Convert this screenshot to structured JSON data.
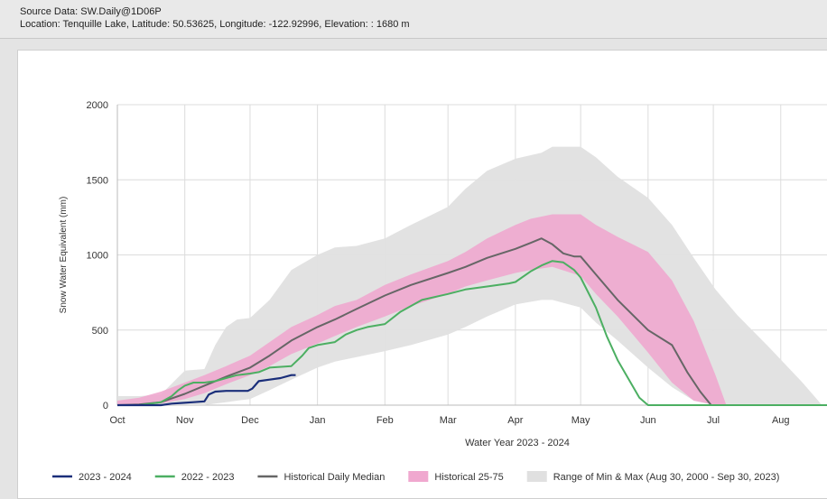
{
  "header": {
    "source": "Source Data: SW.Daily@1D06P",
    "location": "Location: Tenquille Lake, Latitude: 50.53625, Longitude: -122.92996, Elevation: : 1680 m"
  },
  "colors": {
    "current": "#1a2e7a",
    "previous": "#4caf62",
    "median": "#666666",
    "band_25_75": "#f0a8cf",
    "band_minmax": "#e0e0e0",
    "grid": "#dcdcdc"
  },
  "chart_data": {
    "type": "area",
    "title": "",
    "xlabel": "Water Year 2023 - 2024",
    "ylabel": "Snow Water Equivalent (mm)",
    "ylim": [
      0,
      2000
    ],
    "yticks": [
      0,
      500,
      1000,
      1500,
      2000
    ],
    "xlim": [
      0,
      330
    ],
    "month_ticks": [
      {
        "label": "Oct",
        "day": 0
      },
      {
        "label": "Nov",
        "day": 31
      },
      {
        "label": "Dec",
        "day": 61
      },
      {
        "label": "Jan",
        "day": 92
      },
      {
        "label": "Feb",
        "day": 123
      },
      {
        "label": "Mar",
        "day": 152
      },
      {
        "label": "Apr",
        "day": 183
      },
      {
        "label": "May",
        "day": 213
      },
      {
        "label": "Jun",
        "day": 244
      },
      {
        "label": "Jul",
        "day": 274
      },
      {
        "label": "Aug",
        "day": 305
      }
    ],
    "bands": [
      {
        "name": "Range of Min & Max (Aug 30, 2000 - Sep 30, 2023)",
        "x": [
          0,
          10,
          20,
          31,
          40,
          45,
          50,
          55,
          61,
          70,
          80,
          92,
          100,
          110,
          123,
          135,
          152,
          160,
          170,
          183,
          195,
          200,
          213,
          220,
          230,
          244,
          255,
          265,
          275,
          285,
          300,
          315,
          324
        ],
        "low": [
          0,
          0,
          0,
          0,
          0,
          10,
          20,
          30,
          40,
          100,
          170,
          250,
          290,
          320,
          360,
          400,
          470,
          520,
          590,
          670,
          700,
          700,
          650,
          550,
          430,
          250,
          120,
          30,
          0,
          0,
          0,
          0,
          0
        ],
        "high": [
          60,
          60,
          70,
          230,
          240,
          400,
          520,
          570,
          580,
          700,
          900,
          1000,
          1050,
          1060,
          1110,
          1200,
          1320,
          1440,
          1560,
          1640,
          1680,
          1720,
          1720,
          1650,
          1520,
          1380,
          1200,
          980,
          770,
          600,
          380,
          150,
          0
        ]
      },
      {
        "name": "Historical 25-75",
        "x": [
          0,
          10,
          20,
          31,
          40,
          50,
          61,
          70,
          80,
          92,
          100,
          110,
          123,
          135,
          152,
          160,
          170,
          183,
          190,
          200,
          213,
          220,
          230,
          244,
          255,
          265,
          275,
          280
        ],
        "low": [
          0,
          0,
          10,
          40,
          80,
          140,
          200,
          260,
          340,
          410,
          460,
          520,
          590,
          660,
          740,
          790,
          830,
          880,
          900,
          920,
          860,
          740,
          590,
          350,
          150,
          30,
          0,
          0
        ],
        "high": [
          30,
          50,
          90,
          150,
          200,
          260,
          330,
          420,
          520,
          600,
          660,
          700,
          800,
          870,
          960,
          1020,
          1110,
          1200,
          1240,
          1270,
          1270,
          1200,
          1120,
          1020,
          830,
          560,
          200,
          0
        ]
      }
    ],
    "series": [
      {
        "name": "Historical Daily Median",
        "color": "#666666",
        "x": [
          0,
          10,
          20,
          31,
          40,
          50,
          61,
          70,
          80,
          92,
          100,
          110,
          123,
          135,
          152,
          160,
          170,
          183,
          190,
          195,
          200,
          205,
          210,
          213,
          220,
          230,
          244,
          255,
          262,
          268,
          273
        ],
        "y": [
          0,
          5,
          20,
          75,
          130,
          190,
          250,
          330,
          430,
          520,
          570,
          640,
          730,
          800,
          880,
          920,
          980,
          1040,
          1080,
          1110,
          1070,
          1010,
          990,
          990,
          870,
          700,
          500,
          400,
          220,
          90,
          0
        ]
      },
      {
        "name": "2022 - 2023",
        "color": "#4caf62",
        "x": [
          0,
          10,
          20,
          25,
          28,
          31,
          35,
          40,
          45,
          50,
          55,
          61,
          65,
          70,
          80,
          85,
          88,
          92,
          100,
          105,
          110,
          115,
          123,
          130,
          140,
          152,
          160,
          170,
          180,
          183,
          190,
          195,
          200,
          205,
          210,
          213,
          220,
          225,
          230,
          236,
          240,
          244,
          250,
          270,
          300,
          330
        ],
        "y": [
          0,
          0,
          20,
          60,
          100,
          130,
          150,
          150,
          160,
          180,
          200,
          210,
          220,
          250,
          260,
          330,
          380,
          400,
          420,
          470,
          500,
          520,
          540,
          620,
          700,
          740,
          770,
          790,
          810,
          820,
          890,
          930,
          960,
          950,
          900,
          850,
          650,
          460,
          300,
          150,
          50,
          0,
          0,
          0,
          0,
          0
        ]
      },
      {
        "name": "2023 - 2024",
        "color": "#1a2e7a",
        "x": [
          0,
          10,
          20,
          25,
          30,
          35,
          40,
          42,
          45,
          50,
          55,
          60,
          62,
          65,
          70,
          75,
          80,
          82
        ],
        "y": [
          0,
          0,
          0,
          10,
          15,
          20,
          25,
          70,
          90,
          95,
          95,
          95,
          110,
          160,
          170,
          180,
          200,
          200
        ]
      }
    ],
    "legend": [
      {
        "label": "2023 - 2024",
        "kind": "line",
        "color": "#1a2e7a"
      },
      {
        "label": "2022 - 2023",
        "kind": "line",
        "color": "#4caf62"
      },
      {
        "label": "Historical Daily Median",
        "kind": "line",
        "color": "#666666"
      },
      {
        "label": "Historical 25-75",
        "kind": "box",
        "color": "#f0a8cf"
      },
      {
        "label": "Range of Min & Max (Aug 30, 2000 - Sep 30, 2023)",
        "kind": "box",
        "color": "#e0e0e0"
      }
    ],
    "legend_position": "bottom"
  }
}
